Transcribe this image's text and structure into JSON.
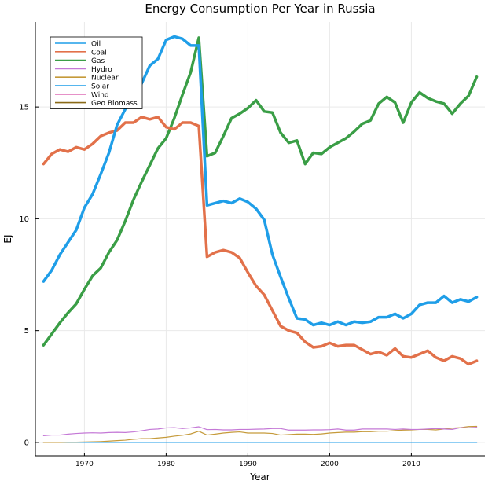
{
  "chart_data": {
    "type": "line",
    "title": "Energy Consumption Per Year in Russia",
    "xlabel": "Year",
    "ylabel": "EJ",
    "xlim": [
      1964,
      2019
    ],
    "ylim": [
      -0.6,
      18.8
    ],
    "xticks": [
      1970,
      1980,
      1990,
      2000,
      2010
    ],
    "yticks": [
      0,
      5,
      10,
      15
    ],
    "grid": true,
    "legend_position": "top-left",
    "x": [
      1965,
      1966,
      1967,
      1968,
      1969,
      1970,
      1971,
      1972,
      1973,
      1974,
      1975,
      1976,
      1977,
      1978,
      1979,
      1980,
      1981,
      1982,
      1983,
      1984,
      1985,
      1986,
      1987,
      1988,
      1989,
      1990,
      1991,
      1992,
      1993,
      1994,
      1995,
      1996,
      1997,
      1998,
      1999,
      2000,
      2001,
      2002,
      2003,
      2004,
      2005,
      2006,
      2007,
      2008,
      2009,
      2010,
      2011,
      2012,
      2013,
      2014,
      2015,
      2016,
      2017,
      2018
    ],
    "series": [
      {
        "name": "Oil",
        "color": "#1f9ee8",
        "width": 3.5,
        "values": [
          7.2,
          7.7,
          8.4,
          8.95,
          9.5,
          10.5,
          11.1,
          12.0,
          12.95,
          14.2,
          14.9,
          15.6,
          16.05,
          16.85,
          17.15,
          18.0,
          18.15,
          18.05,
          17.75,
          17.75,
          10.6,
          10.7,
          10.8,
          10.7,
          10.9,
          10.75,
          10.45,
          9.95,
          8.4,
          7.4,
          6.45,
          5.55,
          5.5,
          5.25,
          5.35,
          5.25,
          5.4,
          5.25,
          5.4,
          5.35,
          5.4,
          5.6,
          5.6,
          5.75,
          5.55,
          5.75,
          6.15,
          6.25,
          6.25,
          6.55,
          6.25,
          6.4,
          6.3,
          6.5
        ]
      },
      {
        "name": "Coal",
        "color": "#e2714a",
        "width": 3.5,
        "values": [
          12.45,
          12.9,
          13.1,
          13.0,
          13.2,
          13.1,
          13.35,
          13.7,
          13.85,
          13.95,
          14.3,
          14.3,
          14.55,
          14.45,
          14.55,
          14.1,
          14.0,
          14.3,
          14.3,
          14.15,
          8.3,
          8.5,
          8.6,
          8.5,
          8.25,
          7.6,
          7.0,
          6.6,
          5.9,
          5.2,
          5.0,
          4.9,
          4.5,
          4.25,
          4.3,
          4.45,
          4.3,
          4.35,
          4.35,
          4.15,
          3.95,
          4.05,
          3.9,
          4.2,
          3.85,
          3.8,
          3.95,
          4.1,
          3.8,
          3.65,
          3.85,
          3.75,
          3.5,
          3.65
        ]
      },
      {
        "name": "Gas",
        "color": "#3a9e46",
        "width": 3.5,
        "values": [
          4.35,
          4.85,
          5.35,
          5.8,
          6.2,
          6.85,
          7.45,
          7.8,
          8.5,
          9.05,
          9.9,
          10.85,
          11.65,
          12.4,
          13.15,
          13.6,
          14.5,
          15.55,
          16.55,
          18.1,
          12.8,
          12.95,
          13.7,
          14.5,
          14.7,
          14.95,
          15.3,
          14.8,
          14.75,
          13.85,
          13.4,
          13.5,
          12.45,
          12.95,
          12.9,
          13.2,
          13.4,
          13.6,
          13.9,
          14.25,
          14.4,
          15.15,
          15.45,
          15.2,
          14.3,
          15.2,
          15.65,
          15.4,
          15.25,
          15.15,
          14.7,
          15.15,
          15.5,
          16.35
        ]
      },
      {
        "name": "Hydro",
        "color": "#c478d6",
        "width": 1.2,
        "values": [
          0.3,
          0.33,
          0.33,
          0.37,
          0.4,
          0.42,
          0.43,
          0.42,
          0.44,
          0.45,
          0.44,
          0.47,
          0.52,
          0.58,
          0.6,
          0.65,
          0.66,
          0.62,
          0.65,
          0.7,
          0.57,
          0.58,
          0.56,
          0.56,
          0.58,
          0.58,
          0.59,
          0.6,
          0.62,
          0.62,
          0.55,
          0.55,
          0.55,
          0.56,
          0.56,
          0.57,
          0.6,
          0.55,
          0.55,
          0.6,
          0.6,
          0.6,
          0.6,
          0.58,
          0.6,
          0.58,
          0.58,
          0.6,
          0.62,
          0.6,
          0.58,
          0.66,
          0.65,
          0.68
        ]
      },
      {
        "name": "Nuclear",
        "color": "#c59a3a",
        "width": 1.2,
        "values": [
          0.0,
          0.0,
          0.0,
          0.01,
          0.01,
          0.02,
          0.03,
          0.04,
          0.06,
          0.08,
          0.1,
          0.14,
          0.17,
          0.17,
          0.2,
          0.23,
          0.28,
          0.32,
          0.38,
          0.5,
          0.33,
          0.37,
          0.42,
          0.45,
          0.47,
          0.42,
          0.42,
          0.42,
          0.4,
          0.33,
          0.35,
          0.37,
          0.37,
          0.36,
          0.38,
          0.42,
          0.44,
          0.46,
          0.46,
          0.48,
          0.48,
          0.5,
          0.5,
          0.53,
          0.55,
          0.56,
          0.58,
          0.58,
          0.56,
          0.6,
          0.64,
          0.66,
          0.71,
          0.72
        ]
      },
      {
        "name": "Solar",
        "color": "#1f9ee8",
        "width": 1.2,
        "values": [
          0,
          0,
          0,
          0,
          0,
          0,
          0,
          0,
          0,
          0,
          0,
          0,
          0,
          0,
          0,
          0,
          0,
          0,
          0,
          0,
          0,
          0,
          0,
          0,
          0,
          0,
          0,
          0,
          0,
          0,
          0,
          0,
          0,
          0,
          0,
          0,
          0,
          0,
          0,
          0,
          0,
          0,
          0,
          0,
          0,
          0,
          0,
          0,
          0,
          0,
          0,
          0,
          0,
          0
        ]
      },
      {
        "name": "Wind",
        "color": "#d64fa8",
        "width": 1.2,
        "values": [
          0,
          0,
          0,
          0,
          0,
          0,
          0,
          0,
          0,
          0,
          0,
          0,
          0,
          0,
          0,
          0,
          0,
          0,
          0,
          0,
          0,
          0,
          0,
          0,
          0,
          0,
          0,
          0,
          0,
          0,
          0,
          0,
          0,
          0,
          0,
          0,
          0,
          0,
          0,
          0,
          0,
          0,
          0,
          0,
          0,
          0,
          0,
          0,
          0,
          0,
          0,
          0,
          0,
          0
        ]
      },
      {
        "name": "Geo Biomass",
        "color": "#8a6a18",
        "width": 1.2,
        "values": [
          0,
          0,
          0,
          0,
          0,
          0,
          0,
          0,
          0,
          0,
          0,
          0,
          0,
          0,
          0,
          0,
          0,
          0,
          0,
          0,
          0,
          0,
          0,
          0,
          0,
          0,
          0,
          0,
          0,
          0,
          0,
          0,
          0,
          0,
          0,
          0,
          0,
          0,
          0,
          0,
          0,
          0,
          0,
          0,
          0,
          0,
          0,
          0,
          0,
          0,
          0,
          0,
          0,
          0
        ]
      }
    ]
  }
}
